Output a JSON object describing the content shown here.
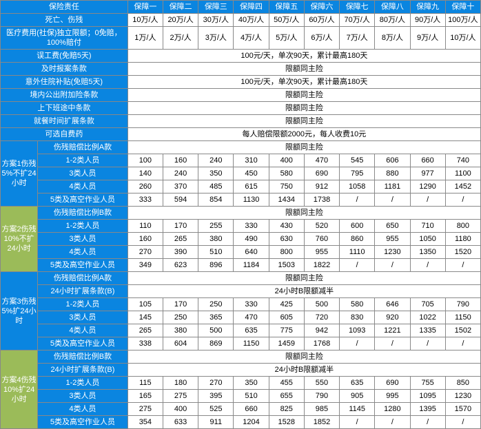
{
  "header": {
    "label_col": "保险责任",
    "plans": [
      "保障一",
      "保障二",
      "保障三",
      "保障四",
      "保障五",
      "保障六",
      "保障七",
      "保障八",
      "保障九",
      "保障十"
    ]
  },
  "baseRows": [
    {
      "label": "死亡、伤残",
      "cells": [
        "10万/人",
        "20万/人",
        "30万/人",
        "40万/人",
        "50万/人",
        "60万/人",
        "70万/人",
        "80万/人",
        "90万/人",
        "100万/人"
      ]
    },
    {
      "label": "医疗费用(社保)独立限额；0免赔，100%赔付",
      "cells": [
        "1万/人",
        "2万/人",
        "3万/人",
        "4万/人",
        "5万/人",
        "6万/人",
        "7万/人",
        "8万/人",
        "9万/人",
        "10万/人"
      ]
    },
    {
      "label": "误工费(免赔5天)",
      "span": "100元/天，单次90天，累计最高180天"
    },
    {
      "label": "及时报案条款",
      "span": "限额同主险"
    },
    {
      "label": "意外住院补贴(免赔5天)",
      "span": "100元/天，单次90天，累计最高180天"
    },
    {
      "label": "境内公出附加险条款",
      "span": "限额同主险"
    },
    {
      "label": "上下班途中条款",
      "span": "限额同主险"
    },
    {
      "label": "就餐时间扩展条款",
      "span": "限额同主险"
    },
    {
      "label": "可选自费药",
      "span": "每人赔偿限额2000元，每人收费10元"
    }
  ],
  "schemes": [
    {
      "side": "方案1伤残5%不扩24小时",
      "side_class": "blue-side",
      "type": "A",
      "rows": [
        {
          "label": "伤残赔偿比例A款",
          "span": "限额同主险"
        },
        {
          "label": "1-2类人员",
          "cells": [
            "100",
            "160",
            "240",
            "310",
            "400",
            "470",
            "545",
            "606",
            "660",
            "740"
          ]
        },
        {
          "label": "3类人员",
          "cells": [
            "140",
            "240",
            "350",
            "450",
            "580",
            "690",
            "795",
            "880",
            "977",
            "1100"
          ]
        },
        {
          "label": "4类人员",
          "cells": [
            "260",
            "370",
            "485",
            "615",
            "750",
            "912",
            "1058",
            "1181",
            "1290",
            "1452"
          ]
        },
        {
          "label": "5类及高空作业人员",
          "cells": [
            "333",
            "594",
            "854",
            "1130",
            "1434",
            "1738",
            "/",
            "/",
            "/",
            "/"
          ]
        }
      ]
    },
    {
      "side": "方案2伤残10%不扩24小时",
      "side_class": "green-side",
      "type": "B",
      "rows": [
        {
          "label": "伤残赔偿比例B款",
          "span": "限额同主险"
        },
        {
          "label": "1-2类人员",
          "cells": [
            "110",
            "170",
            "255",
            "330",
            "430",
            "520",
            "600",
            "650",
            "710",
            "800"
          ]
        },
        {
          "label": "3类人员",
          "cells": [
            "160",
            "265",
            "380",
            "490",
            "630",
            "760",
            "860",
            "955",
            "1050",
            "1180"
          ]
        },
        {
          "label": "4类人员",
          "cells": [
            "270",
            "390",
            "510",
            "640",
            "800",
            "955",
            "1110",
            "1230",
            "1350",
            "1520"
          ]
        },
        {
          "label": "5类及高空作业人员",
          "cells": [
            "349",
            "623",
            "896",
            "1184",
            "1503",
            "1822",
            "/",
            "/",
            "/",
            "/"
          ]
        }
      ]
    },
    {
      "side": "方案3伤残5%扩24小时",
      "side_class": "blue-side",
      "type": "A-ext",
      "rows": [
        {
          "label": "伤残赔偿比例A款",
          "span": "限额同主险"
        },
        {
          "label": "24小时扩展条款(B)",
          "span": "24小时B限额减半"
        },
        {
          "label": "1-2类人员",
          "cells": [
            "105",
            "170",
            "250",
            "330",
            "425",
            "500",
            "580",
            "646",
            "705",
            "790"
          ]
        },
        {
          "label": "3类人员",
          "cells": [
            "145",
            "250",
            "365",
            "470",
            "605",
            "720",
            "830",
            "920",
            "1022",
            "1150"
          ]
        },
        {
          "label": "4类人员",
          "cells": [
            "265",
            "380",
            "500",
            "635",
            "775",
            "942",
            "1093",
            "1221",
            "1335",
            "1502"
          ]
        },
        {
          "label": "5类及高空作业人员",
          "cells": [
            "338",
            "604",
            "869",
            "1150",
            "1459",
            "1768",
            "/",
            "/",
            "/",
            "/"
          ]
        }
      ]
    },
    {
      "side": "方案4伤残10%扩24小时",
      "side_class": "green-side",
      "type": "B-ext",
      "rows": [
        {
          "label": "伤残赔偿比例B款",
          "span": "限额同主险"
        },
        {
          "label": "24小时扩展条款(B)",
          "span": "24小时B限额减半"
        },
        {
          "label": "1-2类人员",
          "cells": [
            "115",
            "180",
            "270",
            "350",
            "455",
            "550",
            "635",
            "690",
            "755",
            "850"
          ]
        },
        {
          "label": "3类人员",
          "cells": [
            "165",
            "275",
            "395",
            "510",
            "655",
            "790",
            "905",
            "995",
            "1095",
            "1230"
          ]
        },
        {
          "label": "4类人员",
          "cells": [
            "275",
            "400",
            "525",
            "660",
            "825",
            "985",
            "1145",
            "1280",
            "1395",
            "1570"
          ]
        },
        {
          "label": "5类及高空作业人员",
          "cells": [
            "354",
            "633",
            "911",
            "1204",
            "1528",
            "1852",
            "/",
            "/",
            "/",
            "/"
          ]
        }
      ]
    }
  ]
}
